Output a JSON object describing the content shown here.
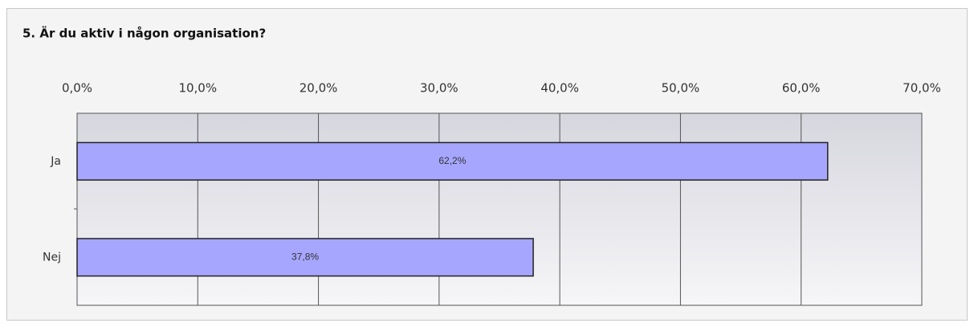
{
  "chart_data": {
    "type": "bar",
    "orientation": "horizontal",
    "title": "5. Är du aktiv i någon organisation?",
    "categories": [
      "Ja",
      "Nej"
    ],
    "values": [
      62.2,
      37.8
    ],
    "value_labels": [
      "62,2%",
      "37,8%"
    ],
    "color": "#a6a6ff",
    "xlim": [
      0,
      70
    ],
    "xticks": [
      {
        "value": 0,
        "label": "0,0%"
      },
      {
        "value": 10,
        "label": "10,0%"
      },
      {
        "value": 20,
        "label": "20,0%"
      },
      {
        "value": 30,
        "label": "30,0%"
      },
      {
        "value": 40,
        "label": "40,0%"
      },
      {
        "value": 50,
        "label": "50,0%"
      },
      {
        "value": 60,
        "label": "60,0%"
      },
      {
        "value": 70,
        "label": "70,0%"
      }
    ],
    "grid": true
  }
}
